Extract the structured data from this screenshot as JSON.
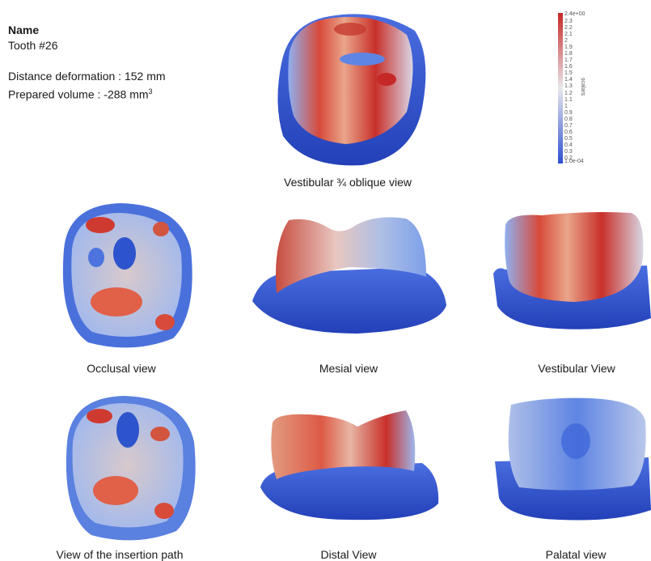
{
  "info": {
    "name_label": "Name",
    "tooth": "Tooth #26",
    "distance": "Distance deformation : 152 mm",
    "volume_prefix": "Prepared volume : -288 mm",
    "volume_unit_sup": "3"
  },
  "captions": {
    "oblique": "Vestibular ¾ oblique view",
    "occlusal": "Occlusal view",
    "mesial": "Mesial view",
    "vestibular": "Vestibular View",
    "insertion": "View of the insertion path",
    "distal": "Distal View",
    "palatal": "Palatal view"
  },
  "colorbar": {
    "title": "scalars",
    "max_label": "2.4e+00",
    "min_label": "1.0e-04",
    "ticks": [
      "2.3",
      "2.2",
      "2.1",
      "2",
      "1.9",
      "1.8",
      "1.7",
      "1.6",
      "1.5",
      "1.4",
      "1.3",
      "1.2",
      "1.1",
      "1",
      "0.9",
      "0.8",
      "0.7",
      "0.6",
      "0.5",
      "0.4",
      "0.3",
      "0.2"
    ],
    "colors": {
      "high": "#c62828",
      "mid": "#e8e8ec",
      "low": "#2f4fd1"
    }
  }
}
